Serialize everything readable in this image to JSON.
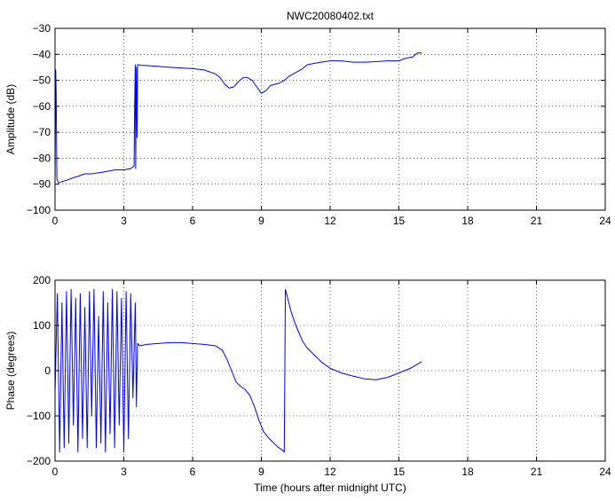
{
  "chart_data": [
    {
      "type": "line",
      "title": "NWC20080402.txt",
      "xlabel": "",
      "ylabel": "Amplitude (dB)",
      "xlim": [
        0,
        24
      ],
      "ylim": [
        -100,
        -30
      ],
      "xticks": [
        "0",
        "3",
        "6",
        "9",
        "12",
        "15",
        "18",
        "21",
        "24"
      ],
      "yticks": [
        "−100",
        "−90",
        "−80",
        "−70",
        "−60",
        "−50",
        "−40",
        "−30"
      ],
      "grid": true,
      "color": "#0000ff",
      "series": [
        {
          "x": [
            0,
            0.03,
            0.05,
            0.08,
            0.15,
            0.3,
            0.5,
            0.8,
            1.0,
            1.3,
            1.6,
            2.0,
            2.3,
            2.6,
            3.0,
            3.3,
            3.45,
            3.47,
            3.5,
            3.52,
            3.55,
            3.58,
            3.6,
            3.65,
            3.7,
            4.0,
            5.0,
            6.0,
            6.5,
            7.0,
            7.2,
            7.4,
            7.6,
            7.8,
            8.0,
            8.2,
            8.4,
            8.6,
            8.8,
            9.0,
            9.2,
            9.4,
            9.6,
            9.8,
            10.0,
            10.2,
            10.5,
            10.8,
            11.0,
            11.3,
            11.6,
            12.0,
            12.5,
            13.0,
            13.5,
            14.0,
            14.5,
            15.0,
            15.3,
            15.6,
            15.8,
            16.0
          ],
          "values": [
            -90,
            -46,
            -55,
            -88,
            -89.5,
            -89,
            -88.5,
            -87.5,
            -87,
            -86,
            -86,
            -85.5,
            -85,
            -84.5,
            -84.5,
            -84,
            -83,
            -63,
            -44,
            -84,
            -45,
            -72,
            -44,
            -44,
            -44.2,
            -44.3,
            -45,
            -45.5,
            -46,
            -47.5,
            -49,
            -51.5,
            -53,
            -52.5,
            -50.5,
            -49,
            -49,
            -50,
            -52.5,
            -55,
            -54,
            -52,
            -51.5,
            -51,
            -50,
            -48.5,
            -47,
            -45.5,
            -44,
            -43.5,
            -43,
            -42.5,
            -42.5,
            -43,
            -43,
            -42.8,
            -42.5,
            -42.5,
            -41.5,
            -41,
            -39.5,
            -39.5
          ]
        }
      ]
    },
    {
      "type": "line",
      "title": "",
      "xlabel": "Time (hours after midnight UTC)",
      "ylabel": "Phase (degrees)",
      "xlim": [
        0,
        24
      ],
      "ylim": [
        -200,
        200
      ],
      "xticks": [
        "0",
        "3",
        "6",
        "9",
        "12",
        "15",
        "18",
        "21",
        "24"
      ],
      "yticks": [
        "−200",
        "−100",
        "0",
        "100",
        "200"
      ],
      "grid": true,
      "color": "#0000ff",
      "series": [
        {
          "x": [
            0,
            0.1,
            0.2,
            0.3,
            0.4,
            0.5,
            0.6,
            0.7,
            0.8,
            0.9,
            1.0,
            1.1,
            1.2,
            1.3,
            1.4,
            1.5,
            1.6,
            1.7,
            1.8,
            1.9,
            2.0,
            2.1,
            2.2,
            2.3,
            2.4,
            2.5,
            2.6,
            2.7,
            2.8,
            2.9,
            3.0,
            3.1,
            3.2,
            3.3,
            3.4,
            3.5,
            3.55,
            3.6,
            3.7,
            4.0,
            4.5,
            5.0,
            5.5,
            6.0,
            6.5,
            7.0,
            7.3,
            7.5,
            7.7,
            7.9,
            8.1,
            8.3,
            8.5,
            8.7,
            8.9,
            9.1,
            9.3,
            9.5,
            9.7,
            9.9,
            10.0,
            10.05,
            10.1,
            10.3,
            10.5,
            10.8,
            11.0,
            11.3,
            11.6,
            12.0,
            12.5,
            13.0,
            13.5,
            14.0,
            14.5,
            15.0,
            15.5,
            16.0
          ],
          "values": [
            -50,
            170,
            -180,
            150,
            -170,
            175,
            -160,
            180,
            -120,
            160,
            -180,
            170,
            -150,
            140,
            -170,
            175,
            -100,
            180,
            -170,
            120,
            -160,
            175,
            -180,
            150,
            -140,
            180,
            -170,
            175,
            -120,
            160,
            -180,
            175,
            -150,
            170,
            -60,
            150,
            -80,
            60,
            55,
            58,
            60,
            62,
            62,
            60,
            58,
            55,
            45,
            25,
            0,
            -25,
            -35,
            -42,
            -55,
            -80,
            -110,
            -135,
            -148,
            -158,
            -168,
            -175,
            -180,
            180,
            170,
            130,
            100,
            65,
            50,
            35,
            20,
            5,
            -5,
            -12,
            -18,
            -20,
            -15,
            -5,
            5,
            20
          ]
        }
      ]
    }
  ]
}
